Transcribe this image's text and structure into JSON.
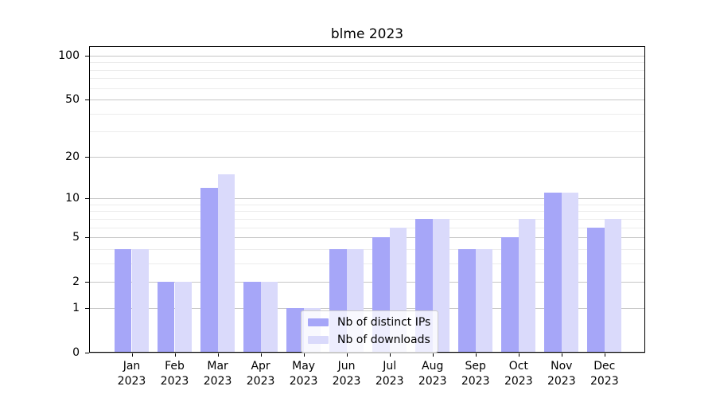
{
  "chart_data": {
    "type": "bar",
    "title": "blme 2023",
    "categories": [
      {
        "month": "Jan",
        "year": "2023"
      },
      {
        "month": "Feb",
        "year": "2023"
      },
      {
        "month": "Mar",
        "year": "2023"
      },
      {
        "month": "Apr",
        "year": "2023"
      },
      {
        "month": "May",
        "year": "2023"
      },
      {
        "month": "Jun",
        "year": "2023"
      },
      {
        "month": "Jul",
        "year": "2023"
      },
      {
        "month": "Aug",
        "year": "2023"
      },
      {
        "month": "Sep",
        "year": "2023"
      },
      {
        "month": "Oct",
        "year": "2023"
      },
      {
        "month": "Nov",
        "year": "2023"
      },
      {
        "month": "Dec",
        "year": "2023"
      }
    ],
    "series": [
      {
        "name": "Nb of distinct IPs",
        "color": "#a6a6f8",
        "values": [
          4,
          2,
          12,
          2,
          1,
          4,
          5,
          7,
          4,
          5,
          11,
          6
        ]
      },
      {
        "name": "Nb of downloads",
        "color": "#dadafb",
        "values": [
          4,
          2,
          15,
          2,
          1,
          4,
          6,
          7,
          4,
          7,
          11,
          7
        ]
      }
    ],
    "yscale": "log10(1+x)",
    "ylim": [
      0,
      116
    ],
    "yticks": [
      0,
      1,
      2,
      5,
      10,
      20,
      50,
      100
    ],
    "minor_yticks": [
      3,
      4,
      6,
      7,
      8,
      9,
      30,
      40,
      60,
      70,
      80,
      90
    ],
    "xlabel": "",
    "ylabel": "",
    "grid": "on",
    "legend_position": "lower center",
    "colors": {
      "major_grid": "#c6c6c6",
      "minor_grid": "#ececec",
      "axis": "#000000",
      "background": "#ffffff"
    }
  }
}
